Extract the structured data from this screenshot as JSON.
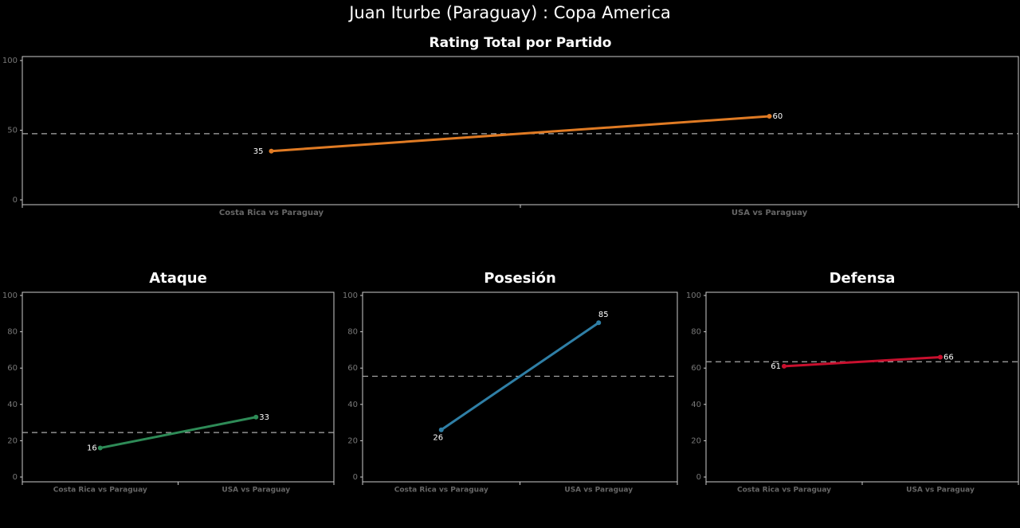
{
  "title": "Juan Iturbe (Paraguay) :  Copa  America",
  "chart_data": [
    {
      "type": "line",
      "title": "Rating Total por Partido",
      "categories": [
        "Costa Rica vs Paraguay",
        "USA vs Paraguay"
      ],
      "values": [
        35,
        60
      ],
      "color": "#e07b24",
      "mean_line": 47.5,
      "ylim": [
        0,
        100
      ],
      "yticks": [
        0,
        50,
        100
      ]
    },
    {
      "type": "line",
      "title": "Ataque",
      "categories": [
        "Costa Rica vs Paraguay",
        "USA vs Paraguay"
      ],
      "values": [
        16,
        33
      ],
      "color": "#2e8b57",
      "mean_line": 24.5,
      "ylim": [
        0,
        100
      ],
      "yticks": [
        0,
        20,
        40,
        60,
        80,
        100
      ]
    },
    {
      "type": "line",
      "title": "Posesión",
      "categories": [
        "Costa Rica vs Paraguay",
        "USA vs Paraguay"
      ],
      "values": [
        26,
        85
      ],
      "color": "#2f7fa6",
      "mean_line": 55.5,
      "ylim": [
        0,
        100
      ],
      "yticks": [
        0,
        20,
        40,
        60,
        80,
        100
      ]
    },
    {
      "type": "line",
      "title": "Defensa",
      "categories": [
        "Costa Rica vs Paraguay",
        "USA vs Paraguay"
      ],
      "values": [
        61,
        66
      ],
      "color": "#c8102e",
      "mean_line": 63.5,
      "ylim": [
        0,
        100
      ],
      "yticks": [
        0,
        20,
        40,
        60,
        80,
        100
      ]
    }
  ]
}
